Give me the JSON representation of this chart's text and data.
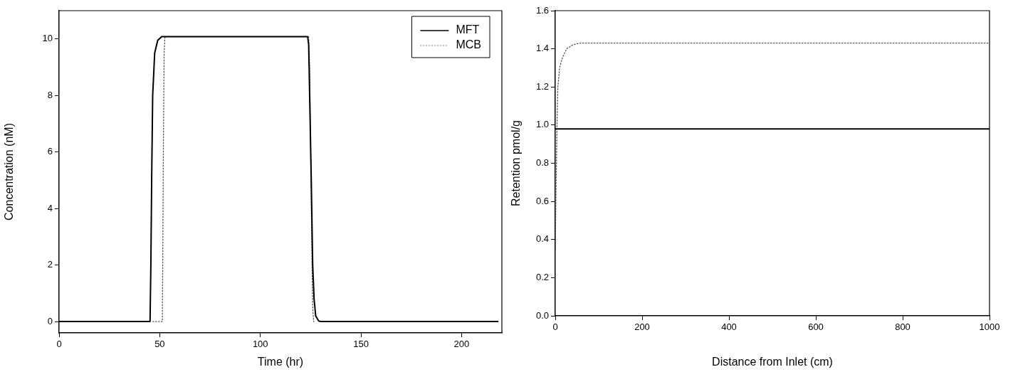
{
  "chart_data": [
    {
      "type": "line",
      "xlabel": "Time (hr)",
      "ylabel": "Concentration (nM)",
      "xlim": [
        0,
        220
      ],
      "xticks": [
        0,
        50,
        100,
        150,
        200
      ],
      "ylim": [
        -0.4,
        11
      ],
      "yticks": [
        0,
        2,
        4,
        6,
        8,
        10
      ],
      "grid": false,
      "legend": "top right",
      "marker": "none",
      "series": [
        {
          "name": "MFT",
          "color": "#000000",
          "line_style": "solid",
          "x": [
            0,
            45.2,
            45.6,
            46,
            46.5,
            47.5,
            49,
            51,
            123.5,
            124,
            124.5,
            125.3,
            126,
            126.7,
            127.5,
            129,
            130,
            218
          ],
          "values": [
            0,
            0,
            2,
            5,
            8,
            9.5,
            9.95,
            10.08,
            10.08,
            9.8,
            8,
            5,
            2,
            0.8,
            0.2,
            0.02,
            0,
            0
          ]
        },
        {
          "name": "MCB",
          "color": "#555555",
          "line_style": "dotted",
          "x": [
            46.5,
            51.3,
            51.5,
            51.8,
            52.2,
            52.6,
            124,
            124.5,
            125,
            125.5,
            126,
            126.5
          ],
          "values": [
            0,
            0,
            2,
            6,
            9.5,
            10.08,
            10.08,
            9,
            6,
            3,
            0.5,
            0
          ]
        }
      ]
    },
    {
      "type": "line",
      "xlabel": "Distance from Inlet (cm)",
      "ylabel": "Retention pmol/g",
      "xlim": [
        0,
        1000
      ],
      "xticks": [
        0,
        200,
        400,
        600,
        800,
        1000
      ],
      "ylim": [
        0,
        1.6
      ],
      "yticks": [
        {
          "value": 0,
          "label": "0.0"
        },
        {
          "value": 0.2,
          "label": "0.2"
        },
        {
          "value": 0.4,
          "label": "0.4"
        },
        {
          "value": 0.6,
          "label": "0.6"
        },
        {
          "value": 0.8,
          "label": "0.8"
        },
        {
          "value": 1,
          "label": "1.0"
        },
        {
          "value": 1.2,
          "label": "1.2"
        },
        {
          "value": 1.4,
          "label": "1.4"
        },
        {
          "value": 1.6,
          "label": "1.6"
        }
      ],
      "grid": false,
      "legend": false,
      "marker": "none",
      "series": [
        {
          "color": "#000000",
          "line_style": "solid",
          "x": [
            0,
            1000
          ],
          "values": [
            0.98,
            0.98
          ]
        },
        {
          "color": "#555555",
          "line_style": "dotted",
          "x": [
            0,
            2,
            4,
            6,
            10,
            16,
            26,
            40,
            55,
            1000
          ],
          "values": [
            0.35,
            0.7,
            1.0,
            1.2,
            1.3,
            1.35,
            1.4,
            1.42,
            1.43,
            1.43
          ]
        }
      ]
    }
  ]
}
